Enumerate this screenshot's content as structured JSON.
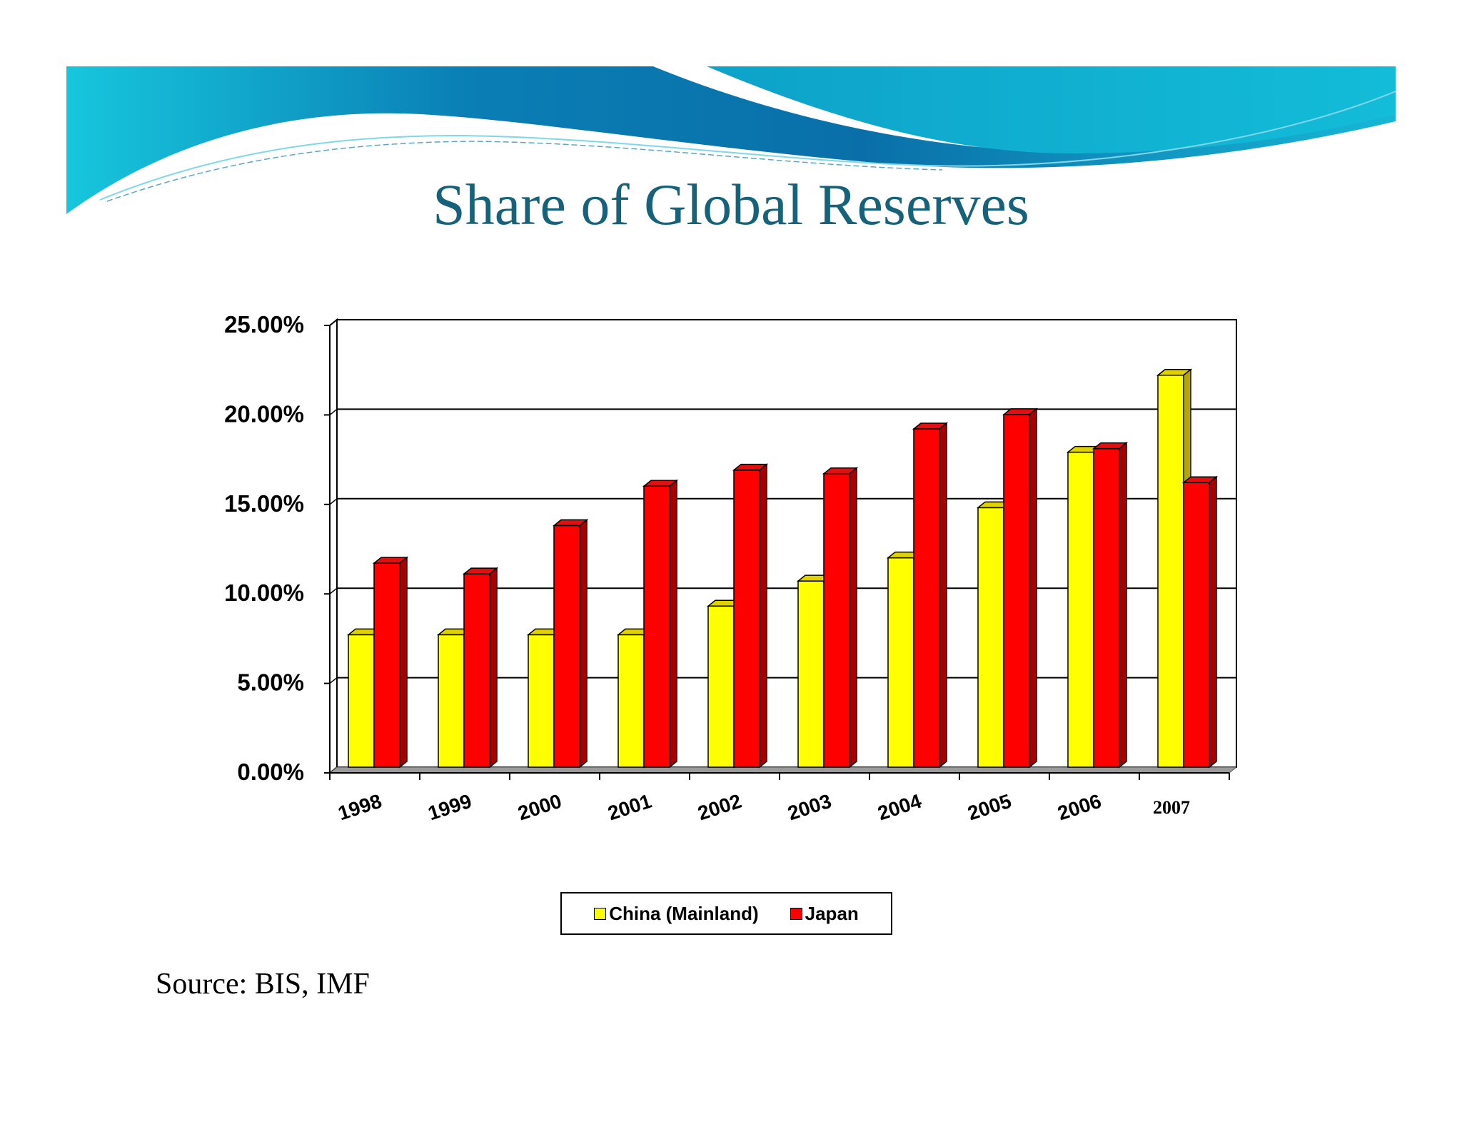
{
  "slide": {
    "title": "Share of Global Reserves",
    "source": "Source: BIS, IMF"
  },
  "colors": {
    "title": "#16627a",
    "china": "#ffff00",
    "japan": "#ff0000",
    "banner_dark": "#0a6fa8",
    "banner_light": "#17c6dd"
  },
  "chart_data": {
    "type": "bar",
    "categories": [
      "1998",
      "1999",
      "2000",
      "2001",
      "2002",
      "2003",
      "2004",
      "2005",
      "2006",
      "2007"
    ],
    "series": [
      {
        "name": "China (Mainland)",
        "color": "#ffff00",
        "values": [
          7.4,
          7.4,
          7.4,
          7.4,
          9.0,
          10.4,
          11.7,
          14.5,
          17.6,
          21.9
        ]
      },
      {
        "name": "Japan",
        "color": "#ff0000",
        "values": [
          11.4,
          10.8,
          13.5,
          15.7,
          16.6,
          16.4,
          18.9,
          19.7,
          17.8,
          15.9
        ]
      }
    ],
    "yticks": [
      "0.00%",
      "5.00%",
      "10.00%",
      "15.00%",
      "20.00%",
      "25.00%"
    ],
    "ylim": [
      0,
      25
    ],
    "grid": true,
    "legend_position": "bottom"
  }
}
